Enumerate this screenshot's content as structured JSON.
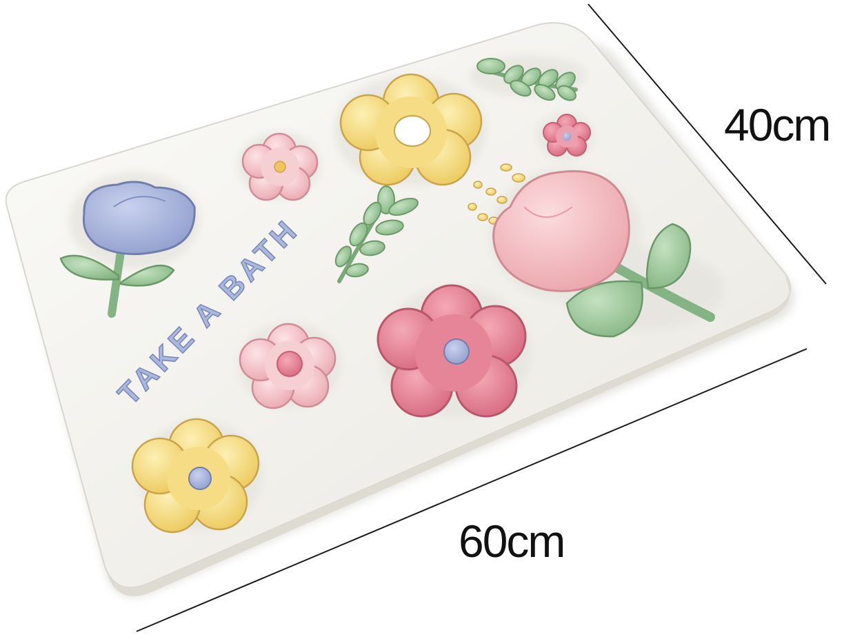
{
  "mat_text": "TAKE A BATH",
  "dimensions": {
    "width": "60cm",
    "depth": "40cm"
  },
  "colors": {
    "mat": "#f3f2ee",
    "yellow": "#f5dc85",
    "pink_light": "#f4c6cb",
    "pink_deep": "#e58294",
    "tulip_pink": "#f1b9bd",
    "lavender": "#a9b4da",
    "leaf_green": "#9cc79a",
    "text_blue": "#9fb0d8"
  }
}
